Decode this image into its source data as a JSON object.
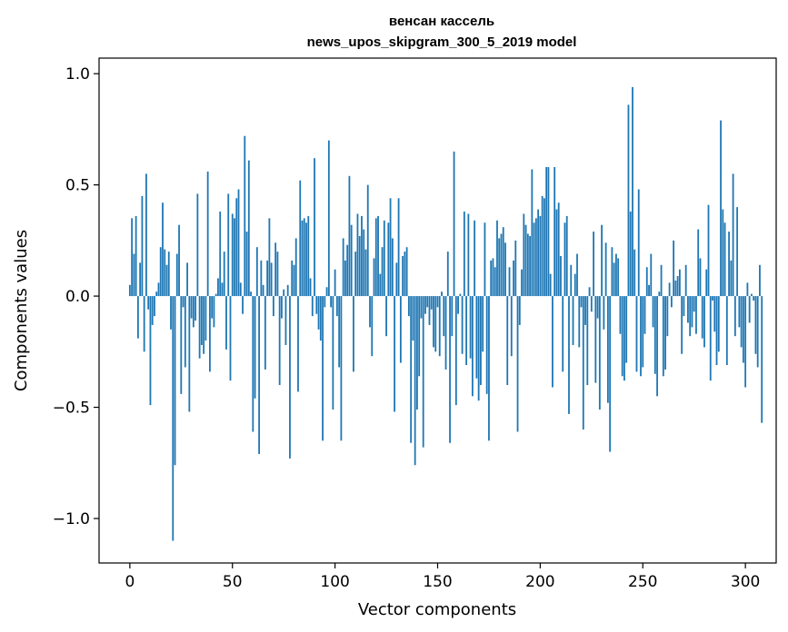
{
  "chart_data": {
    "type": "bar",
    "title": "венсан кассель",
    "subtitle": "news_upos_skipgram_300_5_2019 model",
    "xlabel": "Vector components",
    "ylabel": "Components values",
    "xlim": [
      -15,
      315
    ],
    "ylim": [
      -1.2,
      1.07
    ],
    "xticks": [
      0,
      50,
      100,
      150,
      200,
      250,
      300
    ],
    "yticks": [
      -1.0,
      -0.5,
      0.0,
      0.5,
      1.0
    ],
    "ytick_labels": [
      "−1.0",
      "−0.5",
      "0.0",
      "0.5",
      "1.0"
    ],
    "xtick_labels": [
      "0",
      "50",
      "100",
      "150",
      "200",
      "250",
      "300"
    ],
    "grid": false,
    "legend": "none",
    "color": "#1f77b4",
    "values": [
      0.05,
      0.35,
      0.19,
      0.36,
      -0.19,
      0.15,
      0.45,
      -0.25,
      0.55,
      -0.06,
      -0.49,
      -0.13,
      -0.09,
      0.02,
      0.06,
      0.22,
      0.42,
      0.21,
      0.14,
      0.2,
      -0.15,
      -1.1,
      -0.76,
      0.19,
      0.32,
      -0.44,
      -0.05,
      -0.32,
      0.15,
      -0.52,
      -0.1,
      -0.14,
      -0.11,
      0.46,
      -0.28,
      -0.22,
      -0.26,
      -0.2,
      0.56,
      -0.34,
      -0.1,
      -0.14,
      0.01,
      0.08,
      0.38,
      0.06,
      0.2,
      -0.24,
      0.46,
      -0.38,
      0.37,
      0.35,
      0.44,
      0.48,
      0.06,
      -0.08,
      0.72,
      0.29,
      0.61,
      0.02,
      -0.61,
      -0.46,
      0.22,
      -0.71,
      0.16,
      0.05,
      -0.33,
      0.16,
      0.35,
      0.15,
      -0.09,
      0.24,
      0.2,
      -0.4,
      -0.1,
      0.03,
      -0.22,
      0.05,
      -0.73,
      0.16,
      0.14,
      0.26,
      -0.43,
      0.52,
      0.34,
      0.35,
      0.33,
      0.36,
      0.08,
      -0.09,
      0.62,
      -0.08,
      -0.15,
      -0.2,
      -0.65,
      -0.05,
      0.04,
      0.7,
      -0.05,
      -0.51,
      0.12,
      -0.09,
      -0.32,
      -0.65,
      0.26,
      0.16,
      0.23,
      0.54,
      0.32,
      -0.34,
      0.2,
      0.37,
      0.27,
      0.36,
      0.3,
      0.21,
      0.5,
      -0.14,
      -0.27,
      0.17,
      0.35,
      0.36,
      0.1,
      0.22,
      0.34,
      -0.18,
      0.33,
      0.44,
      0.26,
      -0.52,
      0.15,
      0.44,
      -0.3,
      0.18,
      0.2,
      0.22,
      -0.09,
      -0.66,
      -0.2,
      -0.76,
      -0.51,
      -0.36,
      -0.1,
      -0.68,
      -0.08,
      -0.05,
      -0.13,
      -0.06,
      -0.23,
      -0.25,
      -0.05,
      -0.27,
      0.02,
      -0.18,
      -0.33,
      0.2,
      -0.66,
      -0.18,
      0.65,
      -0.49,
      -0.08,
      0.01,
      -0.26,
      0.38,
      -0.31,
      0.37,
      -0.28,
      -0.45,
      0.34,
      -0.37,
      -0.47,
      -0.4,
      -0.25,
      0.33,
      -0.44,
      -0.65,
      0.16,
      0.17,
      0.13,
      0.34,
      0.26,
      0.28,
      0.31,
      0.24,
      -0.4,
      0.13,
      -0.27,
      0.16,
      0.25,
      -0.61,
      -0.13,
      0.12,
      0.37,
      0.32,
      0.28,
      0.27,
      0.57,
      0.33,
      0.35,
      0.39,
      0.36,
      0.45,
      0.44,
      0.58,
      0.58,
      0.1,
      -0.41,
      0.58,
      0.39,
      0.42,
      0.18,
      -0.34,
      0.33,
      0.36,
      -0.53,
      0.14,
      -0.22,
      0.1,
      0.19,
      -0.23,
      -0.05,
      -0.6,
      -0.13,
      -0.4,
      0.04,
      -0.07,
      0.29,
      -0.39,
      -0.1,
      -0.51,
      0.32,
      -0.15,
      0.24,
      -0.48,
      -0.7,
      0.22,
      0.15,
      0.19,
      0.17,
      -0.17,
      -0.36,
      -0.38,
      -0.3,
      0.86,
      0.38,
      0.94,
      0.21,
      -0.34,
      0.48,
      -0.36,
      -0.32,
      -0.17,
      0.13,
      0.05,
      0.19,
      -0.14,
      -0.35,
      -0.45,
      0.02,
      0.14,
      -0.36,
      -0.33,
      -0.18,
      0.06,
      -0.05,
      0.25,
      0.07,
      0.09,
      0.12,
      -0.26,
      -0.09,
      0.14,
      -0.12,
      -0.18,
      -0.14,
      -0.07,
      -0.17,
      0.3,
      0.17,
      -0.19,
      -0.23,
      0.12,
      0.41,
      -0.38,
      -0.02,
      -0.16,
      -0.31,
      -0.25,
      0.79,
      0.39,
      0.33,
      -0.31,
      0.29,
      0.16,
      0.55,
      -0.18,
      0.4,
      -0.14,
      -0.23,
      -0.3,
      -0.41,
      0.06,
      -0.12,
      0.01,
      -0.02,
      -0.26,
      -0.32,
      0.14,
      -0.57
    ]
  }
}
